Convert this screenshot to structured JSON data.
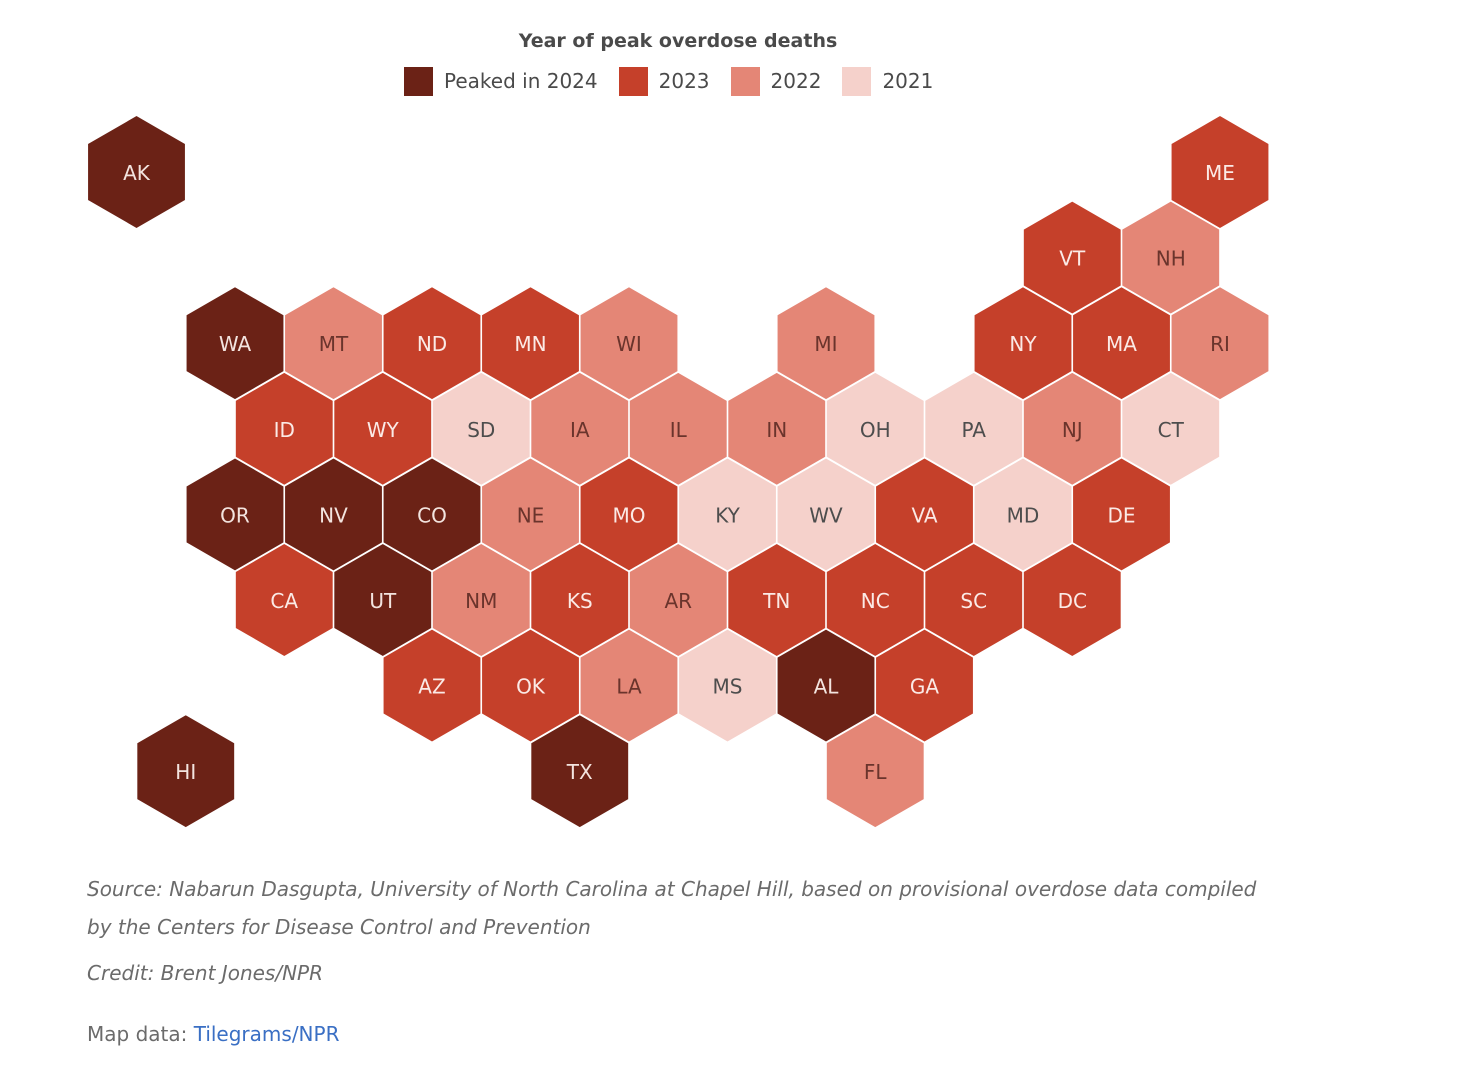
{
  "legend": {
    "title": "Year of peak overdose deaths",
    "items": [
      {
        "key": "2024",
        "label": "Peaked in 2024",
        "color": "#6b2216"
      },
      {
        "key": "2023",
        "label": "2023",
        "color": "#c5402a"
      },
      {
        "key": "2022",
        "label": "2022",
        "color": "#e48676"
      },
      {
        "key": "2021",
        "label": "2021",
        "color": "#f5d1cb"
      }
    ]
  },
  "states": [
    {
      "abbr": "AK",
      "peak": "2024"
    },
    {
      "abbr": "ME",
      "peak": "2023"
    },
    {
      "abbr": "VT",
      "peak": "2023"
    },
    {
      "abbr": "NH",
      "peak": "2022"
    },
    {
      "abbr": "WA",
      "peak": "2024"
    },
    {
      "abbr": "MT",
      "peak": "2022"
    },
    {
      "abbr": "ND",
      "peak": "2023"
    },
    {
      "abbr": "MN",
      "peak": "2023"
    },
    {
      "abbr": "WI",
      "peak": "2022"
    },
    {
      "abbr": "MI",
      "peak": "2022"
    },
    {
      "abbr": "NY",
      "peak": "2023"
    },
    {
      "abbr": "MA",
      "peak": "2023"
    },
    {
      "abbr": "RI",
      "peak": "2022"
    },
    {
      "abbr": "ID",
      "peak": "2023"
    },
    {
      "abbr": "WY",
      "peak": "2023"
    },
    {
      "abbr": "SD",
      "peak": "2021"
    },
    {
      "abbr": "IA",
      "peak": "2022"
    },
    {
      "abbr": "IL",
      "peak": "2022"
    },
    {
      "abbr": "IN",
      "peak": "2022"
    },
    {
      "abbr": "OH",
      "peak": "2021"
    },
    {
      "abbr": "PA",
      "peak": "2021"
    },
    {
      "abbr": "NJ",
      "peak": "2022"
    },
    {
      "abbr": "CT",
      "peak": "2021"
    },
    {
      "abbr": "OR",
      "peak": "2024"
    },
    {
      "abbr": "NV",
      "peak": "2024"
    },
    {
      "abbr": "CO",
      "peak": "2024"
    },
    {
      "abbr": "NE",
      "peak": "2022"
    },
    {
      "abbr": "MO",
      "peak": "2023"
    },
    {
      "abbr": "KY",
      "peak": "2021"
    },
    {
      "abbr": "WV",
      "peak": "2021"
    },
    {
      "abbr": "VA",
      "peak": "2023"
    },
    {
      "abbr": "MD",
      "peak": "2021"
    },
    {
      "abbr": "DE",
      "peak": "2023"
    },
    {
      "abbr": "CA",
      "peak": "2023"
    },
    {
      "abbr": "UT",
      "peak": "2024"
    },
    {
      "abbr": "NM",
      "peak": "2022"
    },
    {
      "abbr": "KS",
      "peak": "2023"
    },
    {
      "abbr": "AR",
      "peak": "2022"
    },
    {
      "abbr": "TN",
      "peak": "2023"
    },
    {
      "abbr": "NC",
      "peak": "2023"
    },
    {
      "abbr": "SC",
      "peak": "2023"
    },
    {
      "abbr": "DC",
      "peak": "2023"
    },
    {
      "abbr": "AZ",
      "peak": "2023"
    },
    {
      "abbr": "OK",
      "peak": "2023"
    },
    {
      "abbr": "LA",
      "peak": "2022"
    },
    {
      "abbr": "MS",
      "peak": "2021"
    },
    {
      "abbr": "AL",
      "peak": "2024"
    },
    {
      "abbr": "GA",
      "peak": "2023"
    },
    {
      "abbr": "HI",
      "peak": "2024"
    },
    {
      "abbr": "TX",
      "peak": "2024"
    },
    {
      "abbr": "FL",
      "peak": "2022"
    }
  ],
  "footer": {
    "source": "Source: Nabarun Dasgupta, University of North Carolina at Chapel Hill, based on provisional overdose data compiled by the Centers for Disease Control and Prevention",
    "credit": "Credit: Brent Jones/NPR",
    "map_data_prefix": "Map data: ",
    "map_data_link": "Tilegrams/NPR"
  }
}
